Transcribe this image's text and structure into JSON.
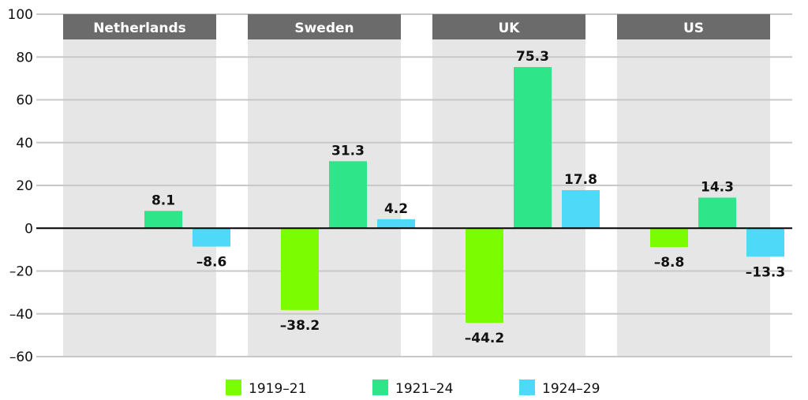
{
  "chart_data": {
    "type": "bar",
    "categories": [
      "Netherlands",
      "Sweden",
      "UK",
      "US"
    ],
    "series": [
      {
        "name": "1919–21",
        "color": "#7cfc00",
        "values": [
          null,
          -38.2,
          -44.2,
          -8.8
        ]
      },
      {
        "name": "1921–24",
        "color": "#2ee58a",
        "values": [
          8.1,
          31.3,
          75.3,
          14.3
        ]
      },
      {
        "name": "1924–29",
        "color": "#4dd9f7",
        "values": [
          -8.6,
          4.2,
          17.8,
          -13.3
        ]
      }
    ],
    "data_labels": [
      [
        null,
        "8.1",
        "–8.6"
      ],
      [
        "–38.2",
        "31.3",
        "4.2"
      ],
      [
        "–44.2",
        "75.3",
        "17.8"
      ],
      [
        "–8.8",
        "14.3",
        "–13.3"
      ]
    ],
    "ylim": [
      -60,
      100
    ],
    "yticks": [
      100,
      80,
      60,
      40,
      20,
      0,
      -20,
      -40,
      -60
    ],
    "ytick_labels": [
      "100",
      "80",
      "60",
      "40",
      "20",
      "0",
      "–20",
      "–40",
      "–60"
    ],
    "grid": true,
    "legend_position": "bottom-center",
    "panel_header_color": "#6b6b6b",
    "panel_background_color": "#e6e6e6",
    "gridline_color": "#c8c8c8"
  }
}
